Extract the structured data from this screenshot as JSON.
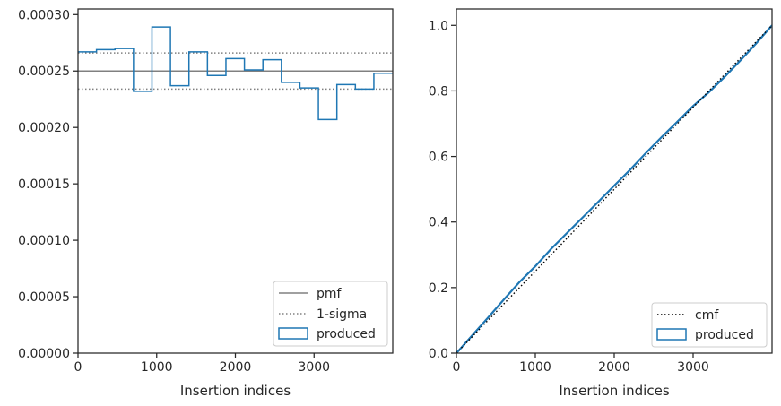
{
  "chart_data": [
    {
      "type": "histogram",
      "xlabel": "Insertion indices",
      "ylabel": "",
      "xlim": [
        0,
        4000
      ],
      "ylim": [
        0,
        0.000305
      ],
      "xticks": [
        0,
        1000,
        2000,
        3000
      ],
      "xtick_labels": [
        "0",
        "1000",
        "2000",
        "3000"
      ],
      "yticks": [
        0,
        5e-05,
        0.0001,
        0.00015,
        0.0002,
        0.00025,
        0.0003
      ],
      "ytick_labels": [
        "0.00000",
        "0.00005",
        "0.00010",
        "0.00015",
        "0.00020",
        "0.00025",
        "0.00030"
      ],
      "pmf": 0.00025,
      "sigma_lines": [
        0.000234,
        0.000266
      ],
      "bin_edges": [
        0,
        235,
        470,
        705,
        940,
        1175,
        1410,
        1645,
        1880,
        2115,
        2350,
        2585,
        2820,
        3055,
        3290,
        3525,
        3760,
        4000
      ],
      "bin_values": [
        0.000267,
        0.000269,
        0.00027,
        0.000232,
        0.000289,
        0.000237,
        0.000267,
        0.000246,
        0.000261,
        0.000251,
        0.00026,
        0.00024,
        0.000235,
        0.000207,
        0.000238,
        0.000234,
        0.000248
      ],
      "legend": {
        "location": "lower right",
        "entries": [
          {
            "label": "pmf",
            "style": "solid",
            "color": "#808080"
          },
          {
            "label": "1-sigma",
            "style": "dotted",
            "color": "#808080"
          },
          {
            "label": "produced",
            "style": "step",
            "color": "#1f77b4"
          }
        ]
      },
      "grid": false
    },
    {
      "type": "line",
      "xlabel": "Insertion indices",
      "ylabel": "",
      "xlim": [
        0,
        4000
      ],
      "ylim": [
        0,
        1.05
      ],
      "xticks": [
        0,
        1000,
        2000,
        3000
      ],
      "xtick_labels": [
        "0",
        "1000",
        "2000",
        "3000"
      ],
      "yticks": [
        0,
        0.2,
        0.4,
        0.6,
        0.8,
        1.0
      ],
      "ytick_labels": [
        "0.0",
        "0.2",
        "0.4",
        "0.6",
        "0.8",
        "1.0"
      ],
      "series": [
        {
          "name": "cmf",
          "style": "dotted",
          "color": "#000000",
          "x": [
            0,
            4000
          ],
          "y": [
            0,
            1.0
          ]
        },
        {
          "name": "produced",
          "style": "step",
          "color": "#1f77b4",
          "x": [
            0,
            200,
            400,
            600,
            800,
            1000,
            1200,
            1400,
            1600,
            1800,
            2000,
            2200,
            2400,
            2600,
            2800,
            3000,
            3200,
            3400,
            3600,
            3800,
            4000
          ],
          "y": [
            0,
            0.054,
            0.108,
            0.163,
            0.217,
            0.265,
            0.318,
            0.366,
            0.414,
            0.462,
            0.511,
            0.559,
            0.61,
            0.659,
            0.706,
            0.754,
            0.796,
            0.843,
            0.893,
            0.945,
            1.0
          ]
        }
      ],
      "legend": {
        "location": "lower right",
        "entries": [
          {
            "label": "cmf",
            "style": "dotted",
            "color": "#000000"
          },
          {
            "label": "produced",
            "style": "step",
            "color": "#1f77b4"
          }
        ]
      },
      "grid": false
    }
  ]
}
